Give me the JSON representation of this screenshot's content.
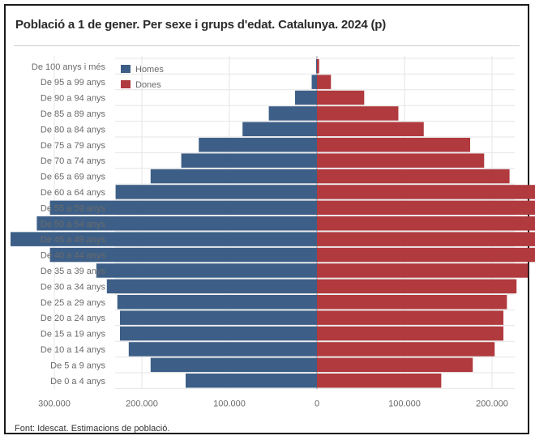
{
  "title": "Població a 1 de gener. Per sexe i grups d'edat. Catalunya. 2024 (p)",
  "source": "Font: Idescat. Estimacions de població.",
  "chart_data": {
    "type": "bar",
    "orientation": "horizontal",
    "layout": "population-pyramid",
    "title": "Població a 1 de gener. Per sexe i grups d'edat. Catalunya. 2024 (p)",
    "categories": [
      "De 0 a 4 anys",
      "De 5 a 9 anys",
      "De 10 a 14 anys",
      "De 15 a 19 anys",
      "De 20 a 24 anys",
      "De 25 a 29 anys",
      "De 30 a 34 anys",
      "De 35 a 39 anys",
      "De 40 a 44 anys",
      "De 45 a 49 anys",
      "De 50 a 54 anys",
      "De 55 a 59 anys",
      "De 60 a 64 anys",
      "De 65 a 69 anys",
      "De 70 a 74 anys",
      "De 75 a 79 anys",
      "De 80 a 84 anys",
      "De 85 a 89 anys",
      "De 90 a 94 anys",
      "De 95 a 99 anys",
      "De 100 anys i més"
    ],
    "series": [
      {
        "name": "Homes",
        "color": "#3d5f87",
        "side": "left",
        "values": [
          150000,
          190000,
          215000,
          225000,
          225000,
          228000,
          240000,
          252000,
          305000,
          350000,
          320000,
          305000,
          230000,
          190000,
          155000,
          135000,
          85000,
          55000,
          25000,
          6000,
          1000
        ]
      },
      {
        "name": "Dones",
        "color": "#b03a3e",
        "side": "right",
        "values": [
          142000,
          178000,
          203000,
          213000,
          213000,
          217000,
          228000,
          241000,
          296000,
          336000,
          308000,
          295000,
          250000,
          220000,
          191000,
          175000,
          122000,
          93000,
          54000,
          16000,
          2500
        ]
      }
    ],
    "tick_labels": [
      "300.000",
      "200.000",
      "100.000",
      "0",
      "100.000",
      "200.000",
      "300.000"
    ],
    "xlim": [
      -350000,
      350000
    ],
    "grid": true,
    "legend_position": "top-left"
  }
}
